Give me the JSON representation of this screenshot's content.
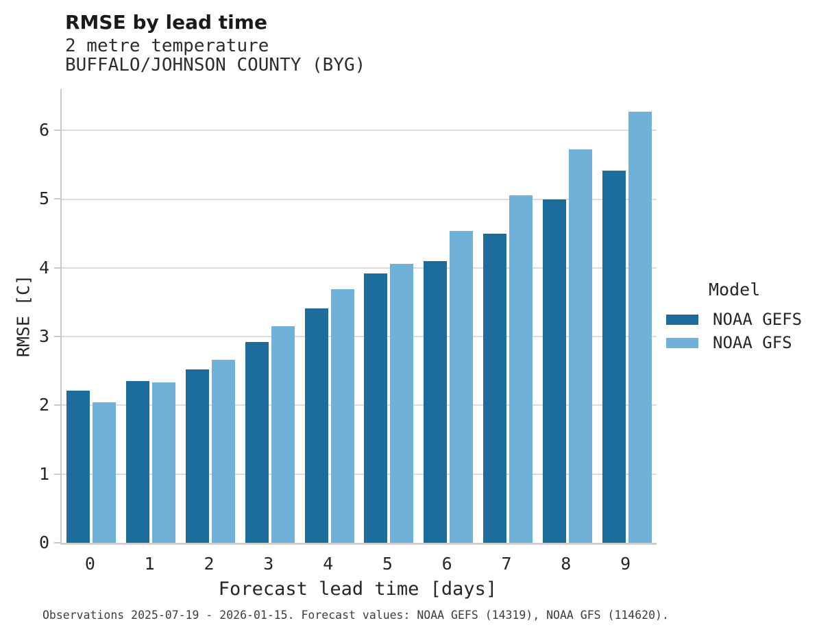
{
  "header": {
    "title": "RMSE by lead time",
    "subtitle_line1": "2 metre temperature",
    "subtitle_line2": "BUFFALO/JOHNSON COUNTY (BYG)"
  },
  "chart_data": {
    "type": "bar",
    "title": "RMSE by lead time",
    "subtitle": [
      "2 metre temperature",
      "BUFFALO/JOHNSON COUNTY (BYG)"
    ],
    "categories": [
      "0",
      "1",
      "2",
      "3",
      "4",
      "5",
      "6",
      "7",
      "8",
      "9"
    ],
    "series": [
      {
        "name": "NOAA GEFS",
        "color": "#1c6d9b",
        "values": [
          2.21,
          2.35,
          2.52,
          2.92,
          3.41,
          3.92,
          4.1,
          4.5,
          5.0,
          5.41
        ]
      },
      {
        "name": "NOAA GFS",
        "color": "#6fb1d8",
        "values": [
          2.04,
          2.33,
          2.66,
          3.15,
          3.69,
          4.06,
          4.54,
          5.05,
          5.72,
          6.27
        ]
      }
    ],
    "xlabel": "Forecast lead time [days]",
    "ylabel": "RMSE [C]",
    "ylim": [
      0,
      6.6
    ],
    "yticks": [
      0,
      1,
      2,
      3,
      4,
      5,
      6
    ],
    "grid": true,
    "legend_title": "Model",
    "legend_position": "right"
  },
  "legend": {
    "title": "Model"
  },
  "footer": {
    "text": "Observations 2025-07-19 - 2026-01-15. Forecast values: NOAA GEFS (14319), NOAA GFS (114620)."
  },
  "colors": {
    "gefs_bar": "#1c6d9b",
    "gfs_bar": "#6fb1d8",
    "gridline": "#dcdcdc",
    "axis": "#c9c9c9",
    "title_text": "#1a1a1a",
    "body_text": "#262626",
    "caption_text": "#3d3d3d",
    "background": "#ffffff"
  }
}
